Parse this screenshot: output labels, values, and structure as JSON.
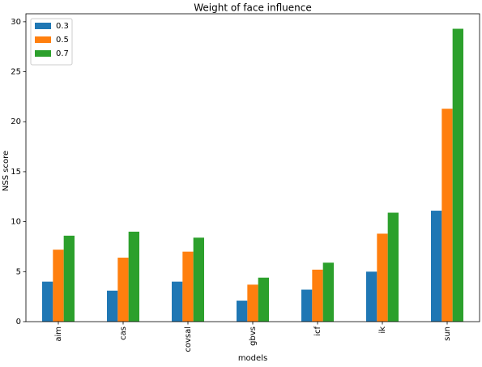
{
  "chart_data": {
    "type": "bar",
    "title": "Weight of face influence",
    "xlabel": "models",
    "ylabel": "NSS score",
    "categories": [
      "aim",
      "cas",
      "covsal",
      "gbvs",
      "icf",
      "ik",
      "sun"
    ],
    "series": [
      {
        "name": "0.3",
        "color": "#1f77b4",
        "values": [
          4.0,
          3.1,
          4.0,
          2.1,
          3.2,
          5.0,
          11.1
        ]
      },
      {
        "name": "0.5",
        "color": "#ff7f0e",
        "values": [
          7.2,
          6.4,
          7.0,
          3.7,
          5.2,
          8.8,
          21.3
        ]
      },
      {
        "name": "0.7",
        "color": "#2ca02c",
        "values": [
          8.6,
          9.0,
          8.4,
          4.4,
          5.9,
          10.9,
          29.3
        ]
      }
    ],
    "ylim": [
      0,
      30.8
    ],
    "yticks": [
      "0",
      "5",
      "10",
      "15",
      "20",
      "25",
      "30"
    ],
    "grid": false,
    "legend_position": "top-left"
  }
}
